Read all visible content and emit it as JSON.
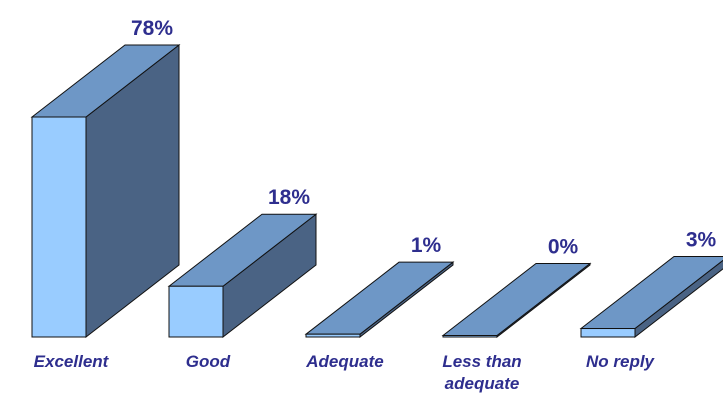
{
  "chart_data": {
    "type": "bar",
    "categories": [
      "Excellent",
      "Good",
      "Adequate",
      "Less than adequate",
      "No reply"
    ],
    "category_label_lines": [
      [
        "Excellent"
      ],
      [
        "Good"
      ],
      [
        "Adequate"
      ],
      [
        "Less than",
        "adequate"
      ],
      [
        "No reply"
      ]
    ],
    "values": [
      78,
      18,
      1,
      0,
      3
    ],
    "value_labels": [
      "78%",
      "18%",
      "1%",
      "0%",
      "3%"
    ],
    "ylim": [
      0,
      78
    ],
    "grid": false,
    "legend": "none",
    "three_d": true
  },
  "colors": {
    "front": "#99ccff",
    "top": "#6e97c6",
    "side": "#4a6384",
    "outline": "#111111",
    "text": "#2e2e8e"
  }
}
